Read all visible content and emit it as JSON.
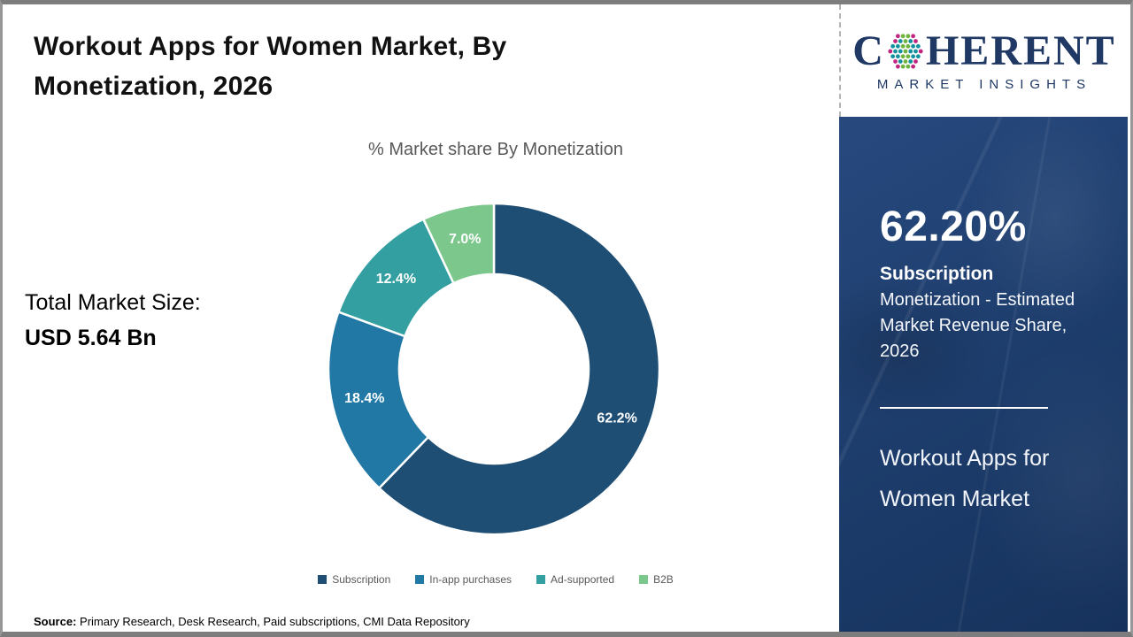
{
  "header": {
    "title": "Workout Apps for Women Market, By Monetization, 2026"
  },
  "logo": {
    "brand_prefix": "C",
    "brand_rest": "HERENT",
    "subtitle": "MARKET INSIGHTS",
    "text_color": "#1f3864",
    "globe_dot_colors": {
      "teal": "#14919e",
      "green": "#6eb43d",
      "magenta": "#c0257f"
    }
  },
  "left_stats": {
    "label": "Total Market Size:",
    "value": "USD 5.64 Bn"
  },
  "chart_data": {
    "type": "pie",
    "subtype": "donut",
    "title": "% Market share By Monetization",
    "categories": [
      "Subscription",
      "In-app purchases",
      "Ad-supported",
      "B2B"
    ],
    "values": [
      62.2,
      18.4,
      12.4,
      7.0
    ],
    "labels": [
      "62.2%",
      "18.4%",
      "12.4%",
      "7.0%"
    ],
    "colors": [
      "#1f4e74",
      "#2178a5",
      "#339fa0",
      "#7cc78c"
    ],
    "start_angle_deg": 0,
    "direction": "clockwise",
    "inner_radius_ratio": 0.57,
    "legend_position": "bottom",
    "label_color": "#ffffff"
  },
  "side_panel": {
    "stat_value": "62.20%",
    "stat_label": "Subscription",
    "stat_description": "Monetization - Estimated Market Revenue Share, 2026",
    "market_name": "Workout Apps for Women Market",
    "background_color": "#1d3d6d",
    "text_color": "#ffffff"
  },
  "footer": {
    "source_label": "Source:",
    "source_text": " Primary Research, Desk Research, Paid subscriptions, CMI Data Repository"
  }
}
